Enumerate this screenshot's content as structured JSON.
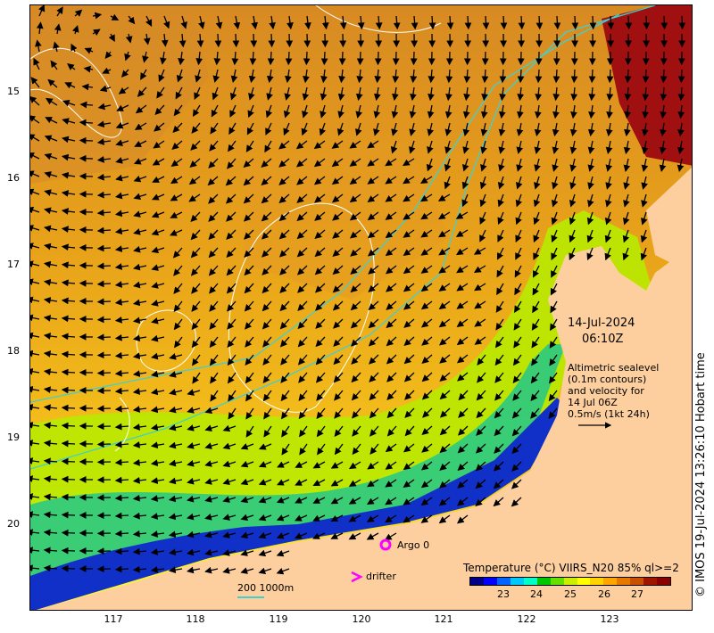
{
  "map": {
    "lat_ticks": [
      "15",
      "16",
      "17",
      "18",
      "19",
      "20"
    ],
    "lon_ticks": [
      "117",
      "118",
      "119",
      "120",
      "121",
      "122",
      "123"
    ],
    "date": "14-Jul-2024",
    "time": "06:10Z",
    "altimetry_text": [
      "Altimetric sealevel",
      "(0.1m contours)",
      "and velocity for",
      "14 Jul 06Z",
      "0.5m/s (1kt 24h)"
    ],
    "credit": "© IMOS 19-Jul-2024 13:26:10 Hobart time",
    "colorbar": {
      "title": "Temperature (°C) VIIRS_N20 85% ql>=2",
      "ticks": [
        "23",
        "24",
        "25",
        "26",
        "27"
      ],
      "colors": [
        "#00008b",
        "#0000ff",
        "#0064ff",
        "#00c8ff",
        "#00ffc8",
        "#00c800",
        "#64e100",
        "#c8f000",
        "#ffff00",
        "#ffd200",
        "#ffa500",
        "#e67800",
        "#c85000",
        "#a01400",
        "#8b0000"
      ]
    },
    "legend": {
      "argo": "Argo 0",
      "drifter": "drifter"
    },
    "scale_label": "200  1000m",
    "colors": {
      "land": "#fdcf9e",
      "contour": "#ffffff",
      "bathymetry": "#40d0d0",
      "argo": "#ff00ff"
    }
  }
}
